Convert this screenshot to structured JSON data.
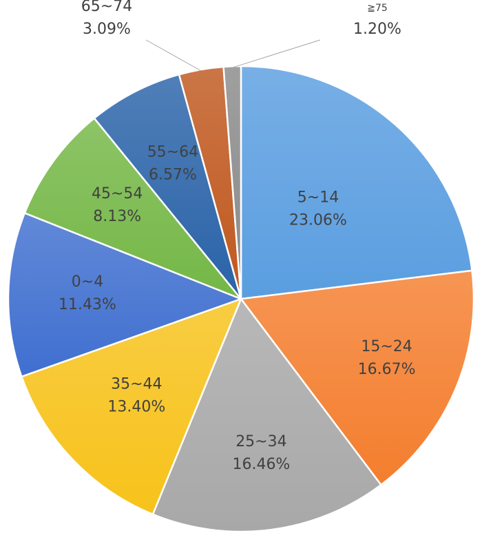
{
  "chart_data": {
    "type": "pie",
    "title": "",
    "start": "12 o'clock, clockwise",
    "slices": [
      {
        "label": "5~14",
        "value": 23.06,
        "value_text": "23.06%",
        "color": "#5a9ee0"
      },
      {
        "label": "15~24",
        "value": 16.67,
        "value_text": "16.67%",
        "color": "#f47e2e"
      },
      {
        "label": "25~34",
        "value": 16.46,
        "value_text": "16.46%",
        "color": "#a8a8a8"
      },
      {
        "label": "35~44",
        "value": 13.4,
        "value_text": "13.40%",
        "color": "#f7c21a"
      },
      {
        "label": "0~4",
        "value": 11.43,
        "value_text": "11.43%",
        "color": "#3f6fd0"
      },
      {
        "label": "45~54",
        "value": 8.13,
        "value_text": "8.13%",
        "color": "#74b746"
      },
      {
        "label": "55~64",
        "value": 6.57,
        "value_text": "6.57%",
        "color": "#2a63a8"
      },
      {
        "label": "65~74",
        "value": 3.09,
        "value_text": "3.09%",
        "color": "#c0581f"
      },
      {
        "label": "≧75",
        "value": 1.2,
        "value_text": "1.20%",
        "color": "#8a8a8a"
      }
    ]
  }
}
